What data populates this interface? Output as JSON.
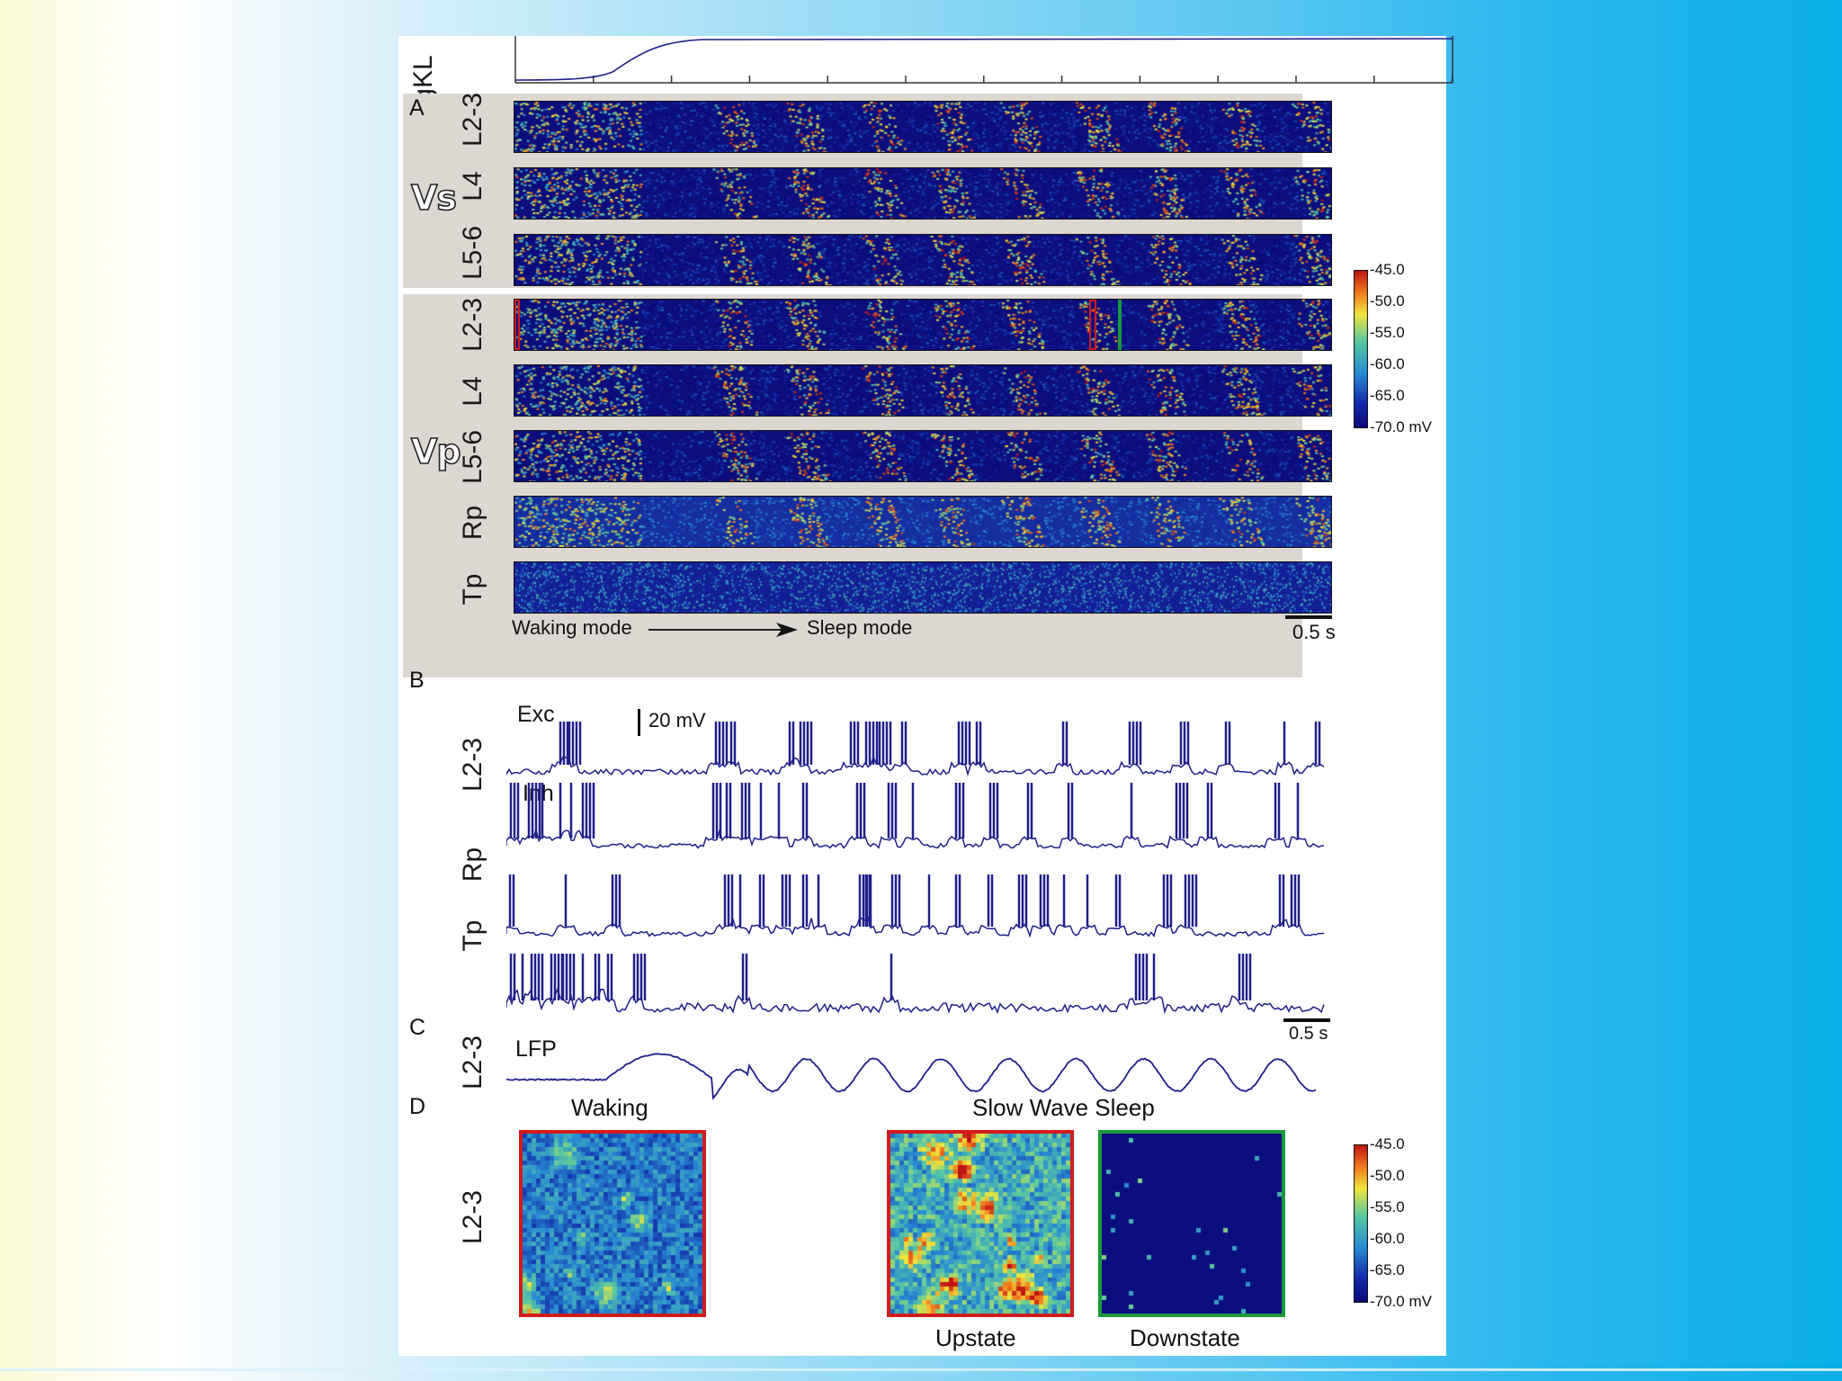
{
  "figure": {
    "top_trace_label": "gKL",
    "panel_a": {
      "letter": "A",
      "vs_group_label": "Vs",
      "vp_group_label": "Vp",
      "vs_rows": [
        "L2-3",
        "L4",
        "L5-6"
      ],
      "vp_rows": [
        "L2-3",
        "L4",
        "L5-6",
        "Rp",
        "Tp"
      ],
      "waking_label": "Waking mode",
      "sleep_label": "Sleep mode",
      "scale_label": "0.5 s"
    },
    "colorbar": {
      "ticks": [
        "-45.0",
        "-50.0",
        "-55.0",
        "-60.0",
        "-65.0",
        "-70.0 mV"
      ]
    },
    "panel_b": {
      "letter": "B",
      "exc_label": "Exc",
      "inh_label": "Inh",
      "scale_label": "20 mV",
      "rows": [
        "L2-3",
        "Rp",
        "Tp"
      ]
    },
    "panel_c": {
      "letter": "C",
      "row_label": "L2-3",
      "trace_label": "LFP",
      "scale_label": "0.5 s"
    },
    "panel_d": {
      "letter": "D",
      "row_label": "L2-3",
      "waking_title": "Waking",
      "sws_title": "Slow Wave Sleep",
      "upstate_label": "Upstate",
      "downstate_label": "Downstate"
    }
  },
  "colors": {
    "trace": "#1f1f8a",
    "low": "#0a0a78",
    "high": "#c81414",
    "upstate_frame": "#d21b1b",
    "downstate_frame": "#1a9a3a"
  }
}
